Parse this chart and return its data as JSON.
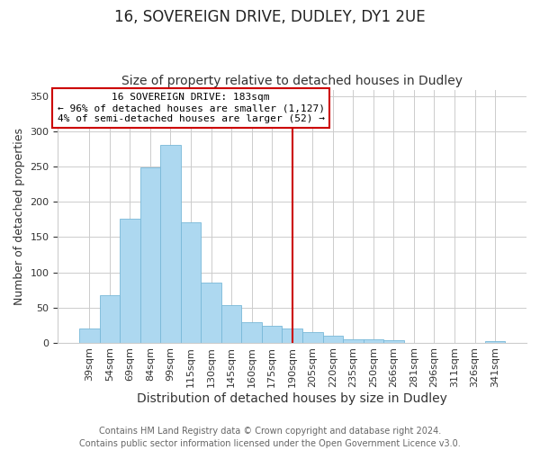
{
  "title": "16, SOVEREIGN DRIVE, DUDLEY, DY1 2UE",
  "subtitle": "Size of property relative to detached houses in Dudley",
  "xlabel": "Distribution of detached houses by size in Dudley",
  "ylabel": "Number of detached properties",
  "bar_labels": [
    "39sqm",
    "54sqm",
    "69sqm",
    "84sqm",
    "99sqm",
    "115sqm",
    "130sqm",
    "145sqm",
    "160sqm",
    "175sqm",
    "190sqm",
    "205sqm",
    "220sqm",
    "235sqm",
    "250sqm",
    "266sqm",
    "281sqm",
    "296sqm",
    "311sqm",
    "326sqm",
    "341sqm"
  ],
  "bar_values": [
    20,
    67,
    176,
    249,
    281,
    171,
    85,
    53,
    29,
    24,
    20,
    15,
    10,
    5,
    4,
    3,
    0,
    0,
    0,
    0,
    2
  ],
  "bar_color": "#add8f0",
  "bar_edge_color": "#78b8d8",
  "vline_index": 10,
  "vline_color": "#cc0000",
  "annotation_title": "16 SOVEREIGN DRIVE: 183sqm",
  "annotation_line1": "← 96% of detached houses are smaller (1,127)",
  "annotation_line2": "4% of semi-detached houses are larger (52) →",
  "annotation_box_color": "#ffffff",
  "annotation_box_edge": "#cc0000",
  "yticks": [
    0,
    50,
    100,
    150,
    200,
    250,
    300,
    350
  ],
  "ylim": [
    0,
    360
  ],
  "footer1": "Contains HM Land Registry data © Crown copyright and database right 2024.",
  "footer2": "Contains public sector information licensed under the Open Government Licence v3.0.",
  "title_fontsize": 12,
  "subtitle_fontsize": 10,
  "xlabel_fontsize": 10,
  "ylabel_fontsize": 9,
  "tick_fontsize": 8,
  "annotation_fontsize": 8,
  "footer_fontsize": 7
}
